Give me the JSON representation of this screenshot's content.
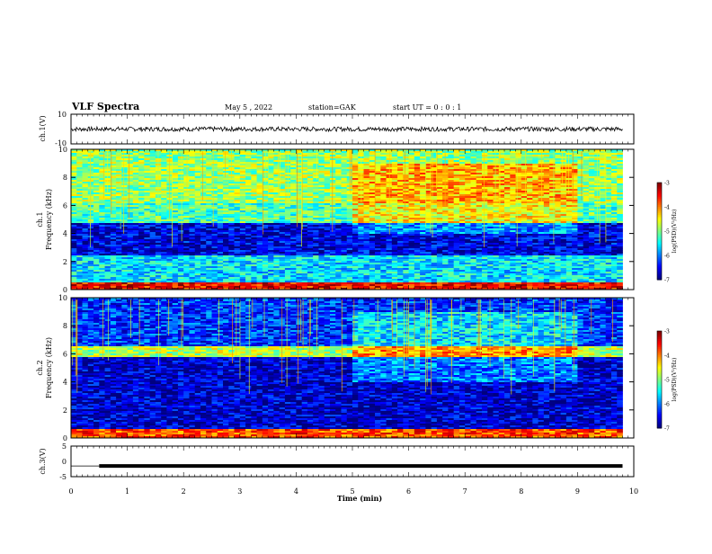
{
  "header": {
    "title": "VLF Spectra",
    "date": "May 5 , 2022",
    "station": "station=GAK",
    "start_ut": "start UT = 0 : 0 : 1"
  },
  "chart_data": [
    {
      "type": "line",
      "panel": "ch1-waveform",
      "ylabel": "ch.1(V)",
      "ylim": [
        -10,
        10
      ],
      "yticks": [
        "10",
        "-10"
      ],
      "description_values": {
        "mean": 0,
        "amplitude": 1.5
      }
    },
    {
      "type": "heatmap",
      "panel": "ch1-spectrogram",
      "ylabel": "ch.1\nFrequency (kHz)",
      "ylabel_lines": [
        "ch.1",
        "Frequency (kHz)"
      ],
      "ylim": [
        0,
        10
      ],
      "yticks": [
        "0",
        "2",
        "4",
        "6",
        "8",
        "10"
      ],
      "xlim": [
        0,
        10
      ],
      "colorbar": {
        "label": "log(PSD)(V²/Hz)",
        "range": [
          -7,
          -3
        ],
        "ticks": [
          "-3",
          "-4",
          "-5",
          "-6",
          "-7"
        ]
      },
      "bands": [
        {
          "f_low": 0,
          "f_high": 0.5,
          "level": -3.5
        },
        {
          "f_low": 0.5,
          "f_high": 2.5,
          "level": -5.6
        },
        {
          "f_low": 2.5,
          "f_high": 4.8,
          "level": -6.6
        },
        {
          "f_low": 4.8,
          "f_high": 6.2,
          "level": -5.2
        },
        {
          "f_low": 6.2,
          "f_high": 10,
          "level": -4.9
        }
      ],
      "interval_change_min": [
        5,
        9
      ]
    },
    {
      "type": "heatmap",
      "panel": "ch2-spectrogram",
      "ylabel": "ch.2\nFrequency (kHz)",
      "ylabel_lines": [
        "ch.2",
        "Frequency (kHz)"
      ],
      "ylim": [
        0,
        10
      ],
      "yticks": [
        "0",
        "2",
        "4",
        "6",
        "8",
        "10"
      ],
      "xlim": [
        0,
        10
      ],
      "colorbar": {
        "label": "log(PSD)(V²/Hz)",
        "range": [
          -7,
          -3
        ],
        "ticks": [
          "-3",
          "-4",
          "-5",
          "-6",
          "-7"
        ]
      },
      "bands": [
        {
          "f_low": 0,
          "f_high": 0.6,
          "level": -3.8
        },
        {
          "f_low": 0.6,
          "f_high": 5.8,
          "level": -6.7
        },
        {
          "f_low": 5.8,
          "f_high": 6.5,
          "level": -4.8
        },
        {
          "f_low": 6.5,
          "f_high": 10,
          "level": -6.3
        }
      ],
      "interval_change_min": [
        5,
        9
      ]
    },
    {
      "type": "line",
      "panel": "ch3-waveform",
      "ylabel": "ch.3(V)",
      "ylim": [
        -5,
        5
      ],
      "yticks": [
        "5",
        "0",
        "-5"
      ],
      "x": [
        0,
        0.5,
        0.5,
        9.8
      ],
      "y": [
        -1.5,
        -1.5,
        -1.5,
        -1.5
      ],
      "xlabel": "Time (min)",
      "xticks": [
        "0",
        "1",
        "2",
        "3",
        "4",
        "5",
        "6",
        "7",
        "8",
        "9",
        "10"
      ],
      "xlim": [
        0,
        10
      ]
    }
  ]
}
